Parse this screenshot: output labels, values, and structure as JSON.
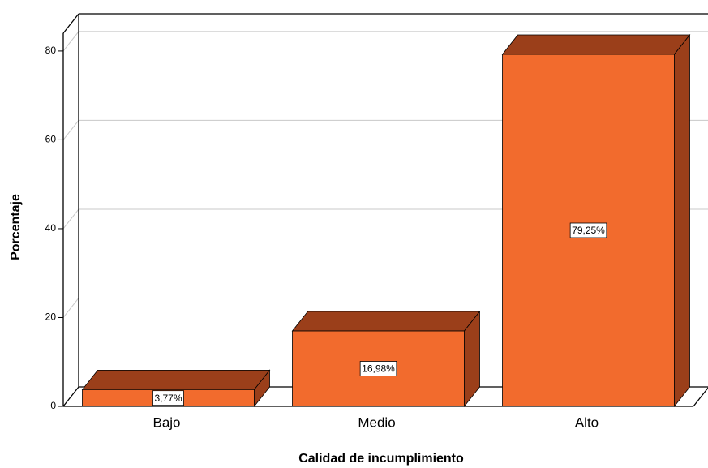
{
  "chart_data": {
    "type": "bar3d",
    "x_label": "Calidad de incumplimiento",
    "y_label": "Porcentaje",
    "categories": [
      "Bajo",
      "Medio",
      "Alto"
    ],
    "values": [
      3.77,
      16.98,
      79.25
    ],
    "value_labels": [
      "3,77%",
      "16,98%",
      "79,25%"
    ],
    "color": "#f26b2d",
    "side_color": "#9b3f1a",
    "ylim": [
      0,
      84
    ],
    "yticks": [
      0,
      20,
      40,
      60,
      80
    ],
    "grid": true
  }
}
